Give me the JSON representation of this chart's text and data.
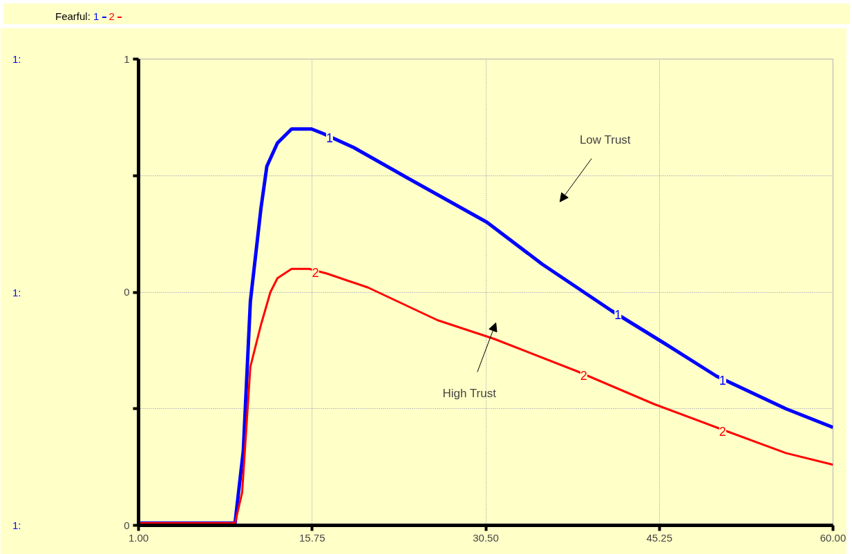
{
  "chart_data": {
    "type": "line",
    "title": "Fearful:",
    "xlim": [
      1,
      60
    ],
    "xticks": [
      {
        "value": 1,
        "label": "1.00"
      },
      {
        "value": 15.75,
        "label": "15.75"
      },
      {
        "value": 30.5,
        "label": "30.50"
      },
      {
        "value": 45.25,
        "label": "45.25"
      },
      {
        "value": 60,
        "label": "60.00"
      }
    ],
    "ylim": [
      0,
      1
    ],
    "yticks": [
      {
        "value": 0,
        "label": "0"
      },
      {
        "value": 0.25,
        "label": null
      },
      {
        "value": 0.5,
        "label": "0"
      },
      {
        "value": 0.75,
        "label": null
      },
      {
        "value": 1,
        "label": "1"
      }
    ],
    "grid": true,
    "legend": "top left",
    "line_style": "solid",
    "marker": "none",
    "series": [
      {
        "name": "1",
        "color": "#0000ff",
        "x": [
          1,
          5,
          9.2,
          9.9,
          10.5,
          11.4,
          11.9,
          12.8,
          14.0,
          15.7,
          16.7,
          19.3,
          23.5,
          30.6,
          35.3,
          41.2,
          45.7,
          50.1,
          56.0,
          60
        ],
        "values": [
          0.005,
          0.005,
          0.005,
          0.16,
          0.48,
          0.68,
          0.77,
          0.82,
          0.85,
          0.85,
          0.84,
          0.81,
          0.75,
          0.65,
          0.56,
          0.46,
          0.39,
          0.32,
          0.25,
          0.21
        ]
      },
      {
        "name": "2",
        "color": "#ff0000",
        "x": [
          1,
          5,
          9.2,
          9.8,
          10.5,
          11.4,
          12.2,
          12.8,
          14.0,
          15.5,
          17.0,
          20.5,
          26.4,
          31.2,
          38.3,
          44.8,
          50.1,
          56.0,
          60
        ],
        "values": [
          0.005,
          0.005,
          0.005,
          0.07,
          0.34,
          0.43,
          0.5,
          0.53,
          0.55,
          0.55,
          0.54,
          0.51,
          0.44,
          0.4,
          0.33,
          0.26,
          0.21,
          0.155,
          0.13
        ]
      }
    ],
    "annotations": [
      "Low Trust",
      "High Trust",
      "1:",
      "1:",
      "1:"
    ]
  }
}
